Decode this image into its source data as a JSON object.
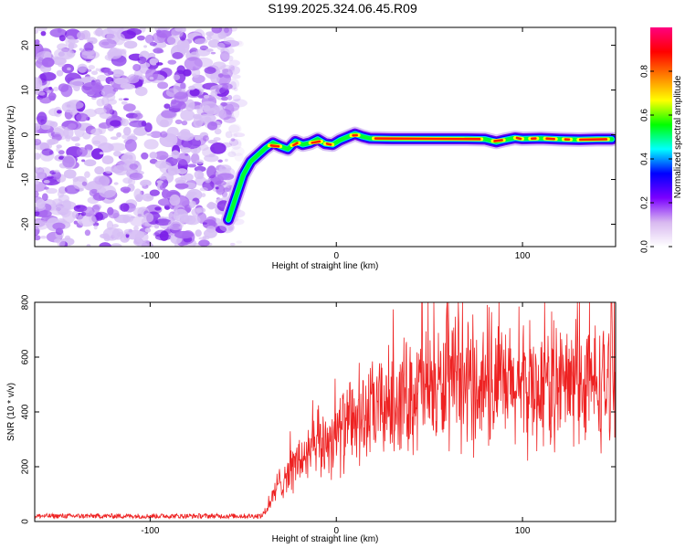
{
  "figure_title": "S199.2025.324.06.45.R09",
  "chart_data": [
    {
      "type": "heatmap",
      "title": "S199.2025.324.06.45.R09",
      "xlabel": "Height of straight line (km)",
      "ylabel": "Frequency (Hz)",
      "xlim": [
        -162,
        150
      ],
      "ylim": [
        -25,
        24
      ],
      "xticks": [
        -100,
        0,
        100
      ],
      "yticks": [
        -20,
        -10,
        0,
        10,
        20
      ],
      "grid": false,
      "colorbar": {
        "label": "Normalized spectral amplitude",
        "range": [
          0,
          1
        ],
        "ticks": [
          0.0,
          0.2,
          0.4,
          0.6,
          0.8
        ],
        "tick_labels": [
          "0.0",
          "0.2",
          "0.4",
          "0.6",
          "0.8"
        ],
        "colors": [
          "#ffffff",
          "#d8b8f0",
          "#7b00ff",
          "#0000ff",
          "#00ffff",
          "#00ff00",
          "#ffff00",
          "#ff8000",
          "#ff0000",
          "#ff0080"
        ]
      },
      "ridge": {
        "description": "frequency track of maximum amplitude",
        "x": [
          -58,
          -54,
          -50,
          -46,
          -42,
          -38,
          -34,
          -30,
          -26,
          -22,
          -18,
          -14,
          -10,
          -6,
          -2,
          2,
          6,
          10,
          14,
          18,
          30,
          50,
          70,
          80,
          86,
          90,
          96,
          100,
          110,
          120,
          130,
          140,
          148
        ],
        "y": [
          -19,
          -14,
          -9,
          -6,
          -4.5,
          -3,
          -1.8,
          -2.6,
          -3.2,
          -1.5,
          -2.2,
          -1.8,
          -1,
          -2,
          -2.2,
          -1.2,
          -0.5,
          0.2,
          -0.4,
          -0.8,
          -0.9,
          -0.9,
          -0.9,
          -1,
          -1.6,
          -1.2,
          -0.7,
          -0.9,
          -0.8,
          -1,
          -1.1,
          -1,
          -1
        ]
      },
      "noise_region_x": [
        -162,
        -52
      ]
    },
    {
      "type": "line",
      "xlabel": "Height of straight line (km)",
      "ylabel": "SNR (10 * v/v)",
      "xlim": [
        -162,
        150
      ],
      "ylim": [
        0,
        800
      ],
      "xticks": [
        -100,
        0,
        100
      ],
      "yticks": [
        0,
        200,
        400,
        600,
        800
      ],
      "grid": false,
      "series": [
        {
          "name": "SNR",
          "color": "#ee2222",
          "envelope_x": [
            -162,
            -40,
            -36,
            -30,
            -20,
            -10,
            0,
            10,
            20,
            30,
            40,
            50,
            60,
            70,
            80,
            90,
            100,
            110,
            120,
            130,
            140,
            150
          ],
          "envelope_y": [
            20,
            20,
            60,
            150,
            220,
            270,
            320,
            360,
            400,
            440,
            470,
            480,
            490,
            490,
            500,
            490,
            480,
            490,
            500,
            500,
            500,
            500
          ],
          "peak_x": [
            46,
            148
          ],
          "peak_y": [
            800,
            800
          ]
        }
      ]
    }
  ]
}
